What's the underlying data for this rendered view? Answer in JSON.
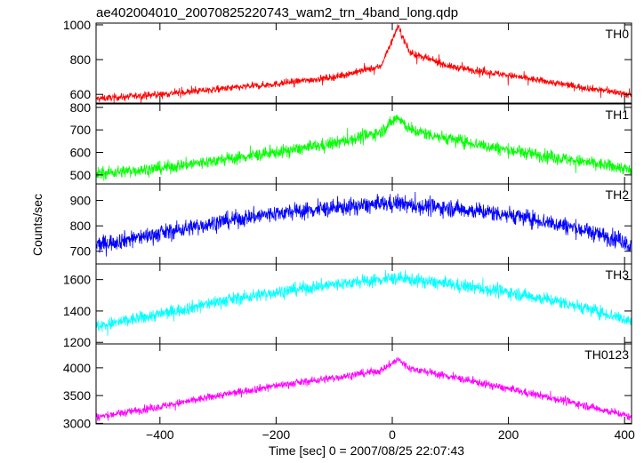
{
  "chart_data": {
    "type": "line",
    "title": "ae402004010_20070825220743_wam2_trn_4band_long.qdp",
    "xlabel": "Time [sec] 0 = 2007/08/25 22:07:43",
    "ylabel": "Counts/sec",
    "xlim": [
      -510,
      412
    ],
    "xticks": [
      -400,
      -200,
      0,
      200,
      400
    ],
    "x_tick_labels": [
      "−400",
      "−200",
      "0",
      "200",
      "400"
    ],
    "x_profile": [
      -510,
      -400,
      -300,
      -200,
      -100,
      -20,
      10,
      30,
      100,
      200,
      300,
      400,
      412
    ],
    "panels": [
      {
        "name": "TH0",
        "color": "#ff0000",
        "ylim": [
          550,
          1010
        ],
        "yticks": [
          600,
          800,
          1000
        ],
        "profile": [
          575,
          600,
          630,
          660,
          700,
          760,
          990,
          840,
          760,
          710,
          655,
          605,
          590
        ],
        "noise": 14,
        "spikes": 45
      },
      {
        "name": "TH1",
        "color": "#00ff00",
        "ylim": [
          460,
          815
        ],
        "yticks": [
          500,
          600,
          700,
          800
        ],
        "profile": [
          505,
          530,
          565,
          600,
          640,
          690,
          760,
          700,
          660,
          610,
          570,
          530,
          515
        ],
        "noise": 20,
        "spikes": 35
      },
      {
        "name": "TH2",
        "color": "#0000ff",
        "ylim": [
          650,
          965
        ],
        "yticks": [
          700,
          800,
          900
        ],
        "profile": [
          725,
          770,
          815,
          850,
          870,
          885,
          890,
          880,
          870,
          845,
          800,
          740,
          715
        ],
        "noise": 24,
        "spikes": 30
      },
      {
        "name": "TH3",
        "color": "#00ffff",
        "ylim": [
          1190,
          1700
        ],
        "yticks": [
          1200,
          1400,
          1600
        ],
        "profile": [
          1300,
          1380,
          1460,
          1520,
          1570,
          1600,
          1610,
          1600,
          1570,
          1520,
          1450,
          1350,
          1330
        ],
        "noise": 30,
        "spikes": 40
      },
      {
        "name": "TH0123",
        "color": "#ff00ff",
        "ylim": [
          2990,
          4430
        ],
        "yticks": [
          3000,
          3500,
          4000
        ],
        "profile": [
          3110,
          3300,
          3500,
          3680,
          3820,
          3950,
          4150,
          3990,
          3840,
          3620,
          3400,
          3150,
          3100
        ],
        "noise": 50,
        "spikes": 70
      }
    ]
  }
}
